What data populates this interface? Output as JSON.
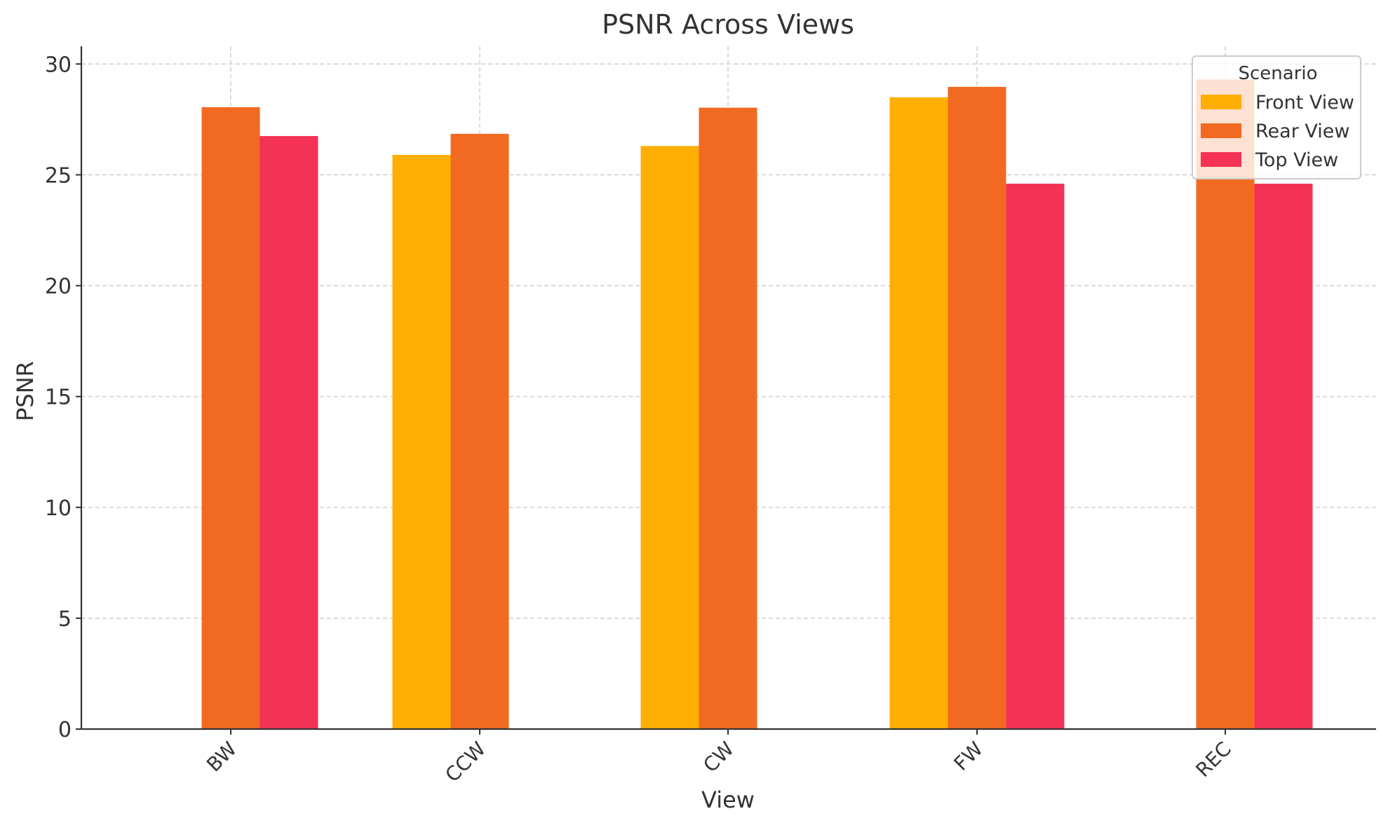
{
  "chart_data": {
    "type": "bar",
    "title": "PSNR Across Views",
    "xlabel": "View",
    "ylabel": "PSNR",
    "categories": [
      "BW",
      "CCW",
      "CW",
      "FW",
      "REC"
    ],
    "series": [
      {
        "name": "Front View",
        "color": "#FFAE03",
        "values": [
          null,
          25.9,
          26.3,
          28.5,
          null
        ]
      },
      {
        "name": "Rear View",
        "color": "#F26A21",
        "values": [
          28.05,
          26.85,
          28.03,
          28.97,
          29.3
        ]
      },
      {
        "name": "Top View",
        "color": "#F43255",
        "values": [
          26.75,
          null,
          null,
          24.6,
          24.6
        ]
      }
    ],
    "ylim": [
      0,
      30.8
    ],
    "yticks": [
      0,
      5,
      10,
      15,
      20,
      25,
      30
    ],
    "grid": true,
    "legend": {
      "title": "Scenario",
      "position": "top-right"
    }
  }
}
